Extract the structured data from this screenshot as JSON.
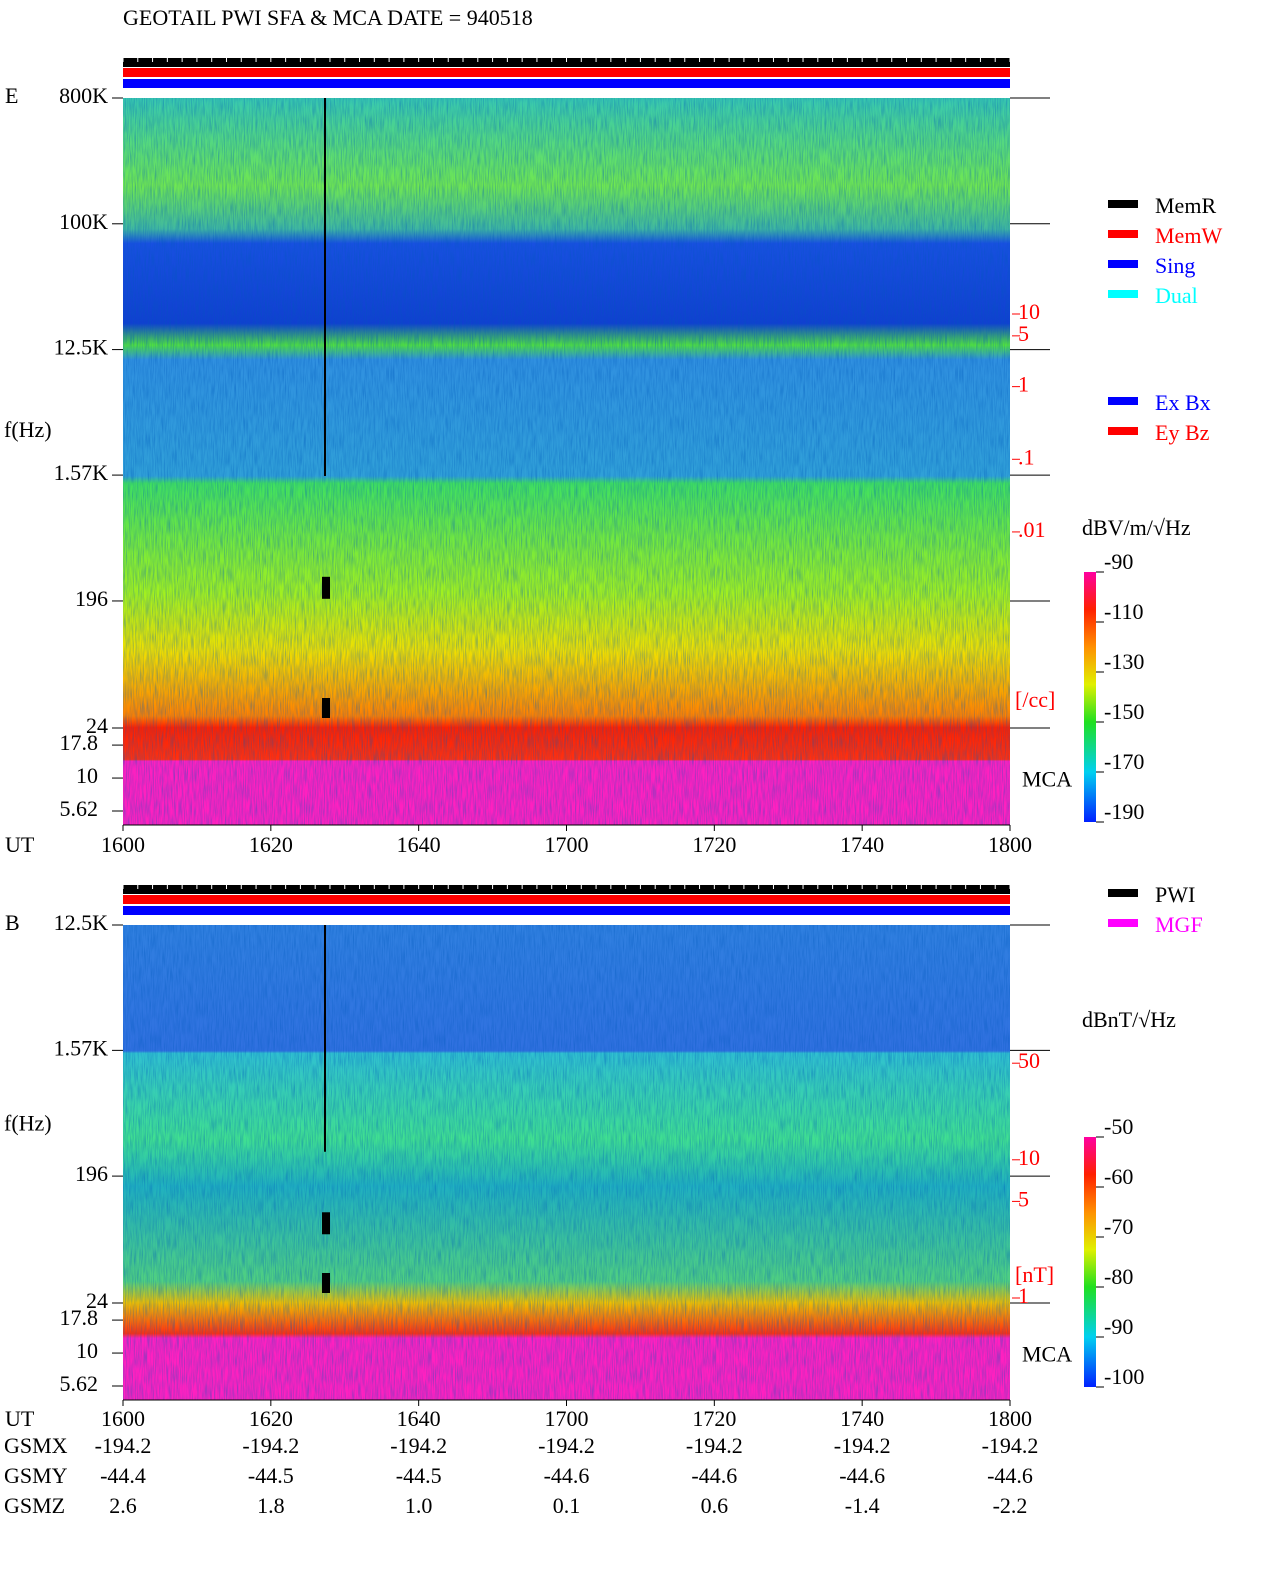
{
  "title": "GEOTAIL  PWI SFA & MCA   DATE = 940518",
  "chart_data": [
    {
      "type": "spectrogram",
      "panel_label": "E",
      "y_label": "f(Hz)",
      "x_label": "UT",
      "y_scale": "log",
      "ylim": [
        24,
        800000
      ],
      "yticks": [
        24,
        196,
        {
          "value": 1570,
          "label": "1.57K"
        },
        {
          "value": 12500,
          "label": "12.5K"
        },
        {
          "value": 100000,
          "label": "100K"
        },
        {
          "value": 800000,
          "label": "800K"
        }
      ],
      "mca_label": "MCA",
      "mca_ylim": [
        4.4,
        24
      ],
      "mca_yticks": [
        17.8,
        10,
        5.62
      ],
      "x_ticks": [
        "1600",
        "1620",
        "1640",
        "1700",
        "1720",
        "1740",
        "1800"
      ],
      "y2_scale": "log",
      "y2lim": [
        2e-05,
        9400
      ],
      "y2ticks": [
        10,
        5,
        1,
        {
          "value": 0.1,
          "label": ".1"
        },
        {
          "value": 0.01,
          "label": ".01"
        }
      ],
      "y2_label": "[/cc]",
      "colorbar": {
        "label": "dBV/m/√Hz",
        "lim": [
          -190,
          -90
        ],
        "ticks": [
          -90,
          -110,
          -130,
          -150,
          -170,
          -190
        ]
      },
      "legend": [
        {
          "name": "MemR",
          "color": "#000000"
        },
        {
          "name": "MemW",
          "color": "#ff0000"
        },
        {
          "name": "Sing",
          "color": "#0000ff"
        },
        {
          "name": "Dual",
          "color": "#00ffff"
        }
      ],
      "legend2": [
        {
          "name": "Ex Bx",
          "color": "#0000ff"
        },
        {
          "name": "Ey Bz",
          "color": "#ff0000"
        }
      ]
    },
    {
      "type": "spectrogram",
      "panel_label": "B",
      "y_label": "f(Hz)",
      "x_label": "UT",
      "y_scale": "log",
      "ylim": [
        24,
        12500
      ],
      "yticks": [
        24,
        196,
        {
          "value": 1570,
          "label": "1.57K"
        },
        {
          "value": 12500,
          "label": "12.5K"
        }
      ],
      "mca_label": "MCA",
      "mca_ylim": [
        4.4,
        24
      ],
      "mca_yticks": [
        17.8,
        10,
        5.62
      ],
      "x_ticks": [
        "1600",
        "1620",
        "1640",
        "1700",
        "1720",
        "1740",
        "1800"
      ],
      "y2_scale": "log",
      "y2lim": [
        0.92,
        500
      ],
      "y2ticks": [
        50,
        10,
        5,
        1
      ],
      "y2_label": "[nT]",
      "colorbar": {
        "label": "dBnT/√Hz",
        "lim": [
          -100,
          -50
        ],
        "ticks": [
          -50,
          -60,
          -70,
          -80,
          -90,
          -100
        ]
      },
      "legend": [
        {
          "name": "PWI",
          "color": "#000000"
        },
        {
          "name": "MGF",
          "color": "#ff00ff"
        }
      ]
    }
  ],
  "orbit": {
    "rows": [
      {
        "label": "GSMX",
        "values": [
          "-194.2",
          "-194.2",
          "-194.2",
          "-194.2",
          "-194.2",
          "-194.2",
          "-194.2"
        ]
      },
      {
        "label": "GSMY",
        "values": [
          "-44.4",
          "-44.5",
          "-44.5",
          "-44.6",
          "-44.6",
          "-44.6",
          "-44.6"
        ]
      },
      {
        "label": "GSMZ",
        "values": [
          "2.6",
          "1.8",
          "1.0",
          "0.1",
          "0.6",
          "-1.4",
          "-2.2"
        ]
      }
    ]
  }
}
